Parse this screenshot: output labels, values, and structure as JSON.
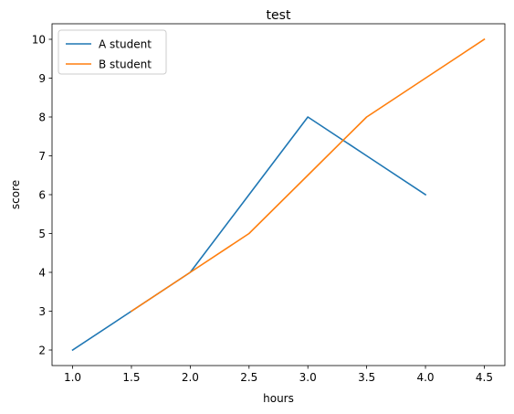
{
  "chart_data": {
    "type": "line",
    "title": "test",
    "xlabel": "hours",
    "ylabel": "score",
    "xlim": [
      0.825,
      4.675
    ],
    "ylim": [
      1.6,
      10.4
    ],
    "xticks": [
      1.0,
      1.5,
      2.0,
      2.5,
      3.0,
      3.5,
      4.0,
      4.5
    ],
    "xtick_labels": [
      "1.0",
      "1.5",
      "2.0",
      "2.5",
      "3.0",
      "3.5",
      "4.0",
      "4.5"
    ],
    "yticks": [
      2,
      3,
      4,
      5,
      6,
      7,
      8,
      9,
      10
    ],
    "ytick_labels": [
      "2",
      "3",
      "4",
      "5",
      "6",
      "7",
      "8",
      "9",
      "10"
    ],
    "grid": false,
    "legend_position": "top-left",
    "series": [
      {
        "name": "A student",
        "color": "#1f77b4",
        "x": [
          1.0,
          1.5,
          2.0,
          2.5,
          3.0,
          3.5,
          4.0
        ],
        "y": [
          2,
          3,
          4,
          6,
          8,
          7,
          6
        ]
      },
      {
        "name": "B student",
        "color": "#ff7f0e",
        "x": [
          1.5,
          2.0,
          2.5,
          3.0,
          3.5,
          4.0,
          4.5
        ],
        "y": [
          3,
          4,
          5,
          6.5,
          8,
          9,
          10
        ]
      }
    ]
  }
}
